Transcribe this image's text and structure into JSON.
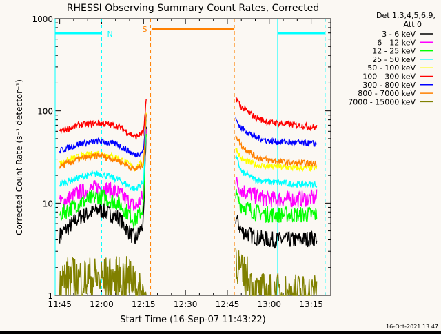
{
  "chart_data": {
    "type": "line",
    "title": "RHESSI Observing Summary Count Rates, Corrected",
    "xlabel": "Start Time (16-Sep-07 11:43:22)",
    "ylabel": "Corrected Count Rate (s⁻¹ detector⁻¹)",
    "y_scale": "log",
    "ylim": [
      1,
      1000
    ],
    "xlim": [
      "11:43:22",
      "13:22:00"
    ],
    "x_ticks": [
      "11:45",
      "12:00",
      "12:15",
      "12:30",
      "12:45",
      "13:00",
      "13:15"
    ],
    "y_ticks": [
      "1",
      "10",
      "100",
      "1000"
    ],
    "legend_header": "Det 1,3,4,5,6,9,",
    "legend_subheader": "Att 0",
    "legend_position": "right",
    "series": [
      {
        "name": "3 - 6 keV",
        "color": "#000000",
        "x": [
          "11:45",
          "11:52",
          "11:59",
          "12:06",
          "12:12",
          "12:15",
          "12:16",
          "12:48",
          "12:50",
          "12:55",
          "13:00",
          "13:10",
          "13:17"
        ],
        "y": [
          4.5,
          7,
          8.5,
          7,
          4,
          6,
          70,
          7,
          5,
          4.3,
          4,
          4,
          4.2
        ]
      },
      {
        "name": "6 - 12 keV",
        "color": "#ff00ff",
        "x": [
          "11:45",
          "11:52",
          "11:59",
          "12:06",
          "12:12",
          "12:15",
          "12:16",
          "12:48",
          "12:50",
          "12:55",
          "13:00",
          "13:10",
          "13:17"
        ],
        "y": [
          10,
          13,
          15,
          13,
          9,
          12,
          80,
          17,
          14,
          12,
          11,
          11,
          11.5
        ]
      },
      {
        "name": "12 - 25 keV",
        "color": "#00ff00",
        "x": [
          "11:45",
          "11:52",
          "11:59",
          "12:06",
          "12:12",
          "12:15",
          "12:16",
          "12:48",
          "12:50",
          "12:55",
          "13:00",
          "13:10",
          "13:17"
        ],
        "y": [
          7.5,
          10,
          12,
          10,
          6.5,
          9,
          75,
          12,
          9.5,
          8,
          7.5,
          7.5,
          7.5
        ]
      },
      {
        "name": "25 - 50 keV",
        "color": "#00ffff",
        "x": [
          "11:45",
          "11:52",
          "11:59",
          "12:06",
          "12:12",
          "12:15",
          "12:16",
          "12:48",
          "12:50",
          "12:55",
          "13:00",
          "13:10",
          "13:17"
        ],
        "y": [
          16,
          19,
          21,
          18,
          14,
          17,
          90,
          32,
          22,
          18,
          17,
          16,
          16
        ]
      },
      {
        "name": "50 - 100 keV",
        "color": "#ffff00",
        "x": [
          "11:45",
          "11:52",
          "11:59",
          "12:06",
          "12:12",
          "12:15",
          "12:16",
          "12:48",
          "12:50",
          "12:55",
          "13:00",
          "13:10",
          "13:17"
        ],
        "y": [
          27,
          32,
          35,
          31,
          24,
          28,
          95,
          40,
          30,
          26,
          25,
          24,
          24
        ]
      },
      {
        "name": "100 - 300 keV",
        "color": "#ff0000",
        "x": [
          "11:45",
          "11:52",
          "11:59",
          "12:06",
          "12:12",
          "12:15",
          "12:16",
          "12:48",
          "12:50",
          "12:55",
          "13:00",
          "13:10",
          "13:17"
        ],
        "y": [
          60,
          70,
          74,
          68,
          52,
          58,
          130,
          140,
          110,
          85,
          75,
          70,
          66
        ]
      },
      {
        "name": "300 - 800 keV",
        "color": "#0000ff",
        "x": [
          "11:45",
          "11:52",
          "11:59",
          "12:06",
          "12:12",
          "12:15",
          "12:16",
          "12:48",
          "12:50",
          "12:55",
          "13:00",
          "13:10",
          "13:17"
        ],
        "y": [
          37,
          44,
          47,
          43,
          33,
          37,
          100,
          80,
          65,
          52,
          47,
          45,
          44
        ]
      },
      {
        "name": "800 - 7000 keV",
        "color": "#ff8000",
        "x": [
          "11:45",
          "11:52",
          "11:59",
          "12:06",
          "12:12",
          "12:15",
          "12:16",
          "12:48",
          "12:50",
          "12:55",
          "13:00",
          "13:10",
          "13:17"
        ],
        "y": [
          25,
          30,
          33,
          29,
          23,
          27,
          90,
          55,
          42,
          32,
          29,
          27,
          27
        ]
      },
      {
        "name": "7000 - 15000 keV",
        "color": "#808000",
        "x": [
          "11:45",
          "11:52",
          "11:59",
          "12:06",
          "12:12",
          "12:13",
          "12:16",
          "12:48",
          "12:50",
          "12:53",
          "12:55",
          "13:00",
          "13:17"
        ],
        "y": [
          1.5,
          1.5,
          1.5,
          1.5,
          1.5,
          1,
          1,
          2.8,
          1.6,
          1.5,
          1,
          1,
          1
        ]
      }
    ],
    "annotations": {
      "night_label": "N",
      "saa_label": "S"
    },
    "night_intervals": [
      [
        "11:43:22",
        "12:00:00"
      ],
      [
        "13:03:00",
        "13:20:00"
      ]
    ],
    "saa_intervals": [
      [
        "12:18:00",
        "12:47:30"
      ]
    ],
    "timestamp": "16-Oct-2021 13:47"
  },
  "colors": {
    "background": "#000000",
    "plot_background": "#fbf8f3",
    "axes": "#000000",
    "night_bar": "#00ffff",
    "saa_bar": "#ff8000"
  }
}
